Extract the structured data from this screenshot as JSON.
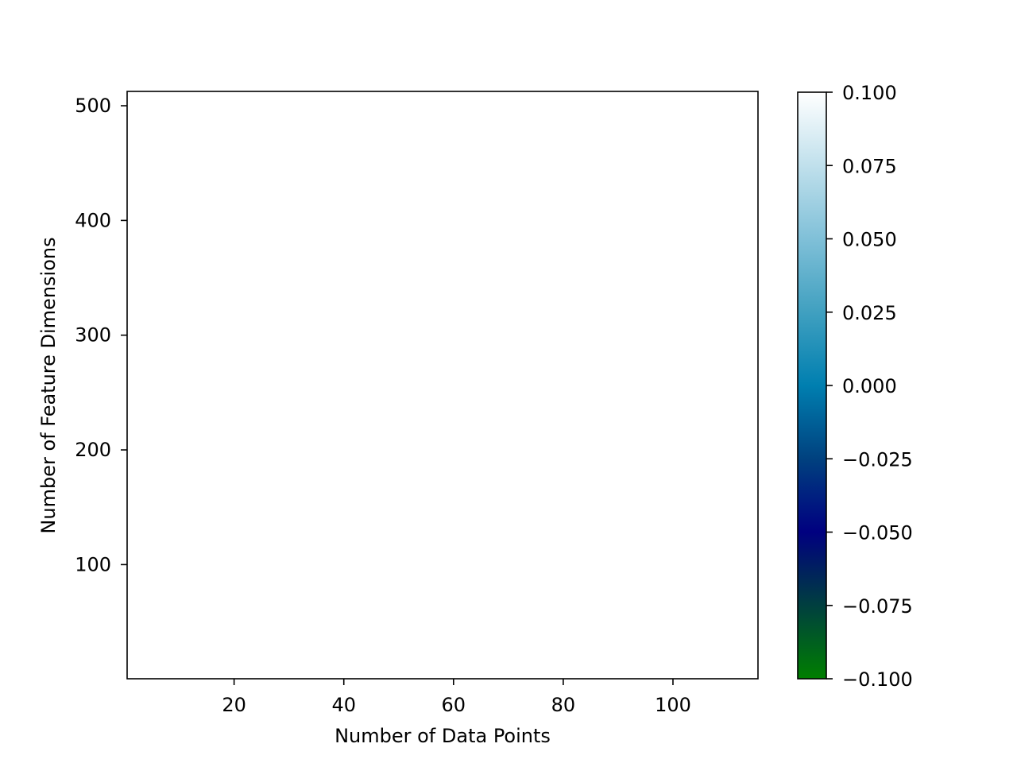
{
  "chart_data": {
    "type": "heatmap",
    "title": "",
    "xlabel": "Number of Data Points",
    "ylabel": "Number of Feature Dimensions",
    "xlim": [
      0.5,
      115.5
    ],
    "ylim": [
      0.5,
      512.5
    ],
    "x_ticks": [
      20,
      40,
      60,
      80,
      100
    ],
    "y_ticks": [
      100,
      200,
      300,
      400,
      500
    ],
    "values": [],
    "grid": false,
    "colorbar": {
      "colormap": "ocean",
      "vmin": -0.1,
      "vmax": 0.1,
      "ticks": [
        -0.1,
        -0.075,
        -0.05,
        -0.025,
        0.0,
        0.025,
        0.05,
        0.075,
        0.1
      ],
      "tick_labels": [
        "−0.100",
        "−0.075",
        "−0.050",
        "−0.025",
        "0.000",
        "0.025",
        "0.050",
        "0.075",
        "0.100"
      ],
      "gradient_colors": [
        "#007f00",
        "#003f3f",
        "#000080",
        "#00417f",
        "#007fb0",
        "#40a0c0",
        "#80c0d8",
        "#c0e0ec",
        "#ffffff"
      ]
    }
  }
}
